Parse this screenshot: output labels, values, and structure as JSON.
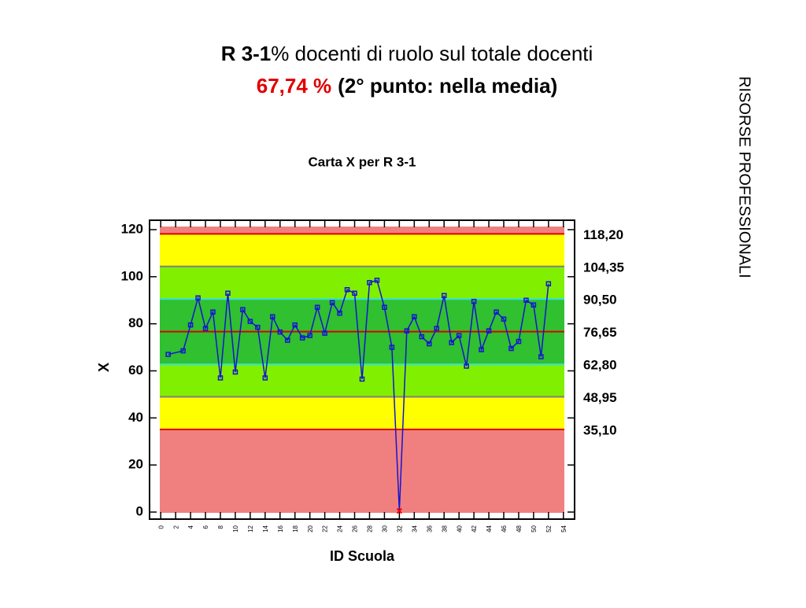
{
  "header": {
    "title_code": "R 3-1",
    "title_text": "% docenti di ruolo sul totale docenti",
    "value_text": "67,74 %",
    "position_text": "(2° punto: nella media)"
  },
  "side_label": "RISORSE PROFESSIONALI",
  "chart_data": {
    "type": "line",
    "title": "Carta X per R 3-1",
    "x_label": "ID Scuola",
    "y_label": "X",
    "x": [
      1,
      3,
      4,
      5,
      6,
      7,
      8,
      9,
      10,
      11,
      12,
      13,
      14,
      15,
      16,
      17,
      18,
      19,
      20,
      21,
      22,
      23,
      24,
      25,
      26,
      27,
      28,
      29,
      30,
      31,
      32,
      33,
      34,
      35,
      36,
      37,
      38,
      39,
      40,
      41,
      42,
      43,
      44,
      45,
      46,
      47,
      48,
      49,
      50,
      51,
      52
    ],
    "series": [
      {
        "name": "X",
        "color": "#1414d2",
        "values": [
          67,
          68.5,
          79.5,
          91,
          78,
          85,
          57,
          93,
          59.5,
          86,
          81,
          78.5,
          57,
          83,
          76.5,
          73,
          79.5,
          74,
          75,
          87,
          76,
          89,
          84.5,
          94.5,
          93,
          56.5,
          97.5,
          98.5,
          87,
          70,
          0.5,
          77,
          83,
          74.5,
          71.5,
          78,
          92,
          72,
          75,
          62,
          89.5,
          69,
          77,
          85,
          82,
          69.5,
          72.5,
          90,
          88,
          66,
          97
        ]
      }
    ],
    "outlier_color": "#ff0000",
    "control_lines": [
      {
        "value": 118.2,
        "label": "118,20",
        "color": "#e00000"
      },
      {
        "value": 104.35,
        "label": "104,35",
        "color": "#808080"
      },
      {
        "value": 90.5,
        "label": "90,50",
        "color": "#30e0e0"
      },
      {
        "value": 76.65,
        "label": "76,65",
        "color": "#e00000"
      },
      {
        "value": 62.8,
        "label": "62,80",
        "color": "#30e0e0"
      },
      {
        "value": 48.95,
        "label": "48,95",
        "color": "#808080"
      },
      {
        "value": 35.1,
        "label": "35,10",
        "color": "#e00000"
      }
    ],
    "band_colors": [
      "#f08080",
      "#ffff00",
      "#80f000",
      "#30c030",
      "#30c030",
      "#80f000",
      "#ffff00",
      "#f08080"
    ],
    "xlim": [
      -1.5,
      55.5
    ],
    "ylim": [
      -3,
      124
    ],
    "xticks": [
      0,
      2,
      4,
      6,
      8,
      10,
      12,
      14,
      16,
      18,
      20,
      22,
      24,
      26,
      28,
      30,
      32,
      34,
      36,
      38,
      40,
      42,
      44,
      46,
      48,
      50,
      52,
      54
    ],
    "yticks": [
      0,
      20,
      40,
      60,
      80,
      100,
      120
    ]
  }
}
